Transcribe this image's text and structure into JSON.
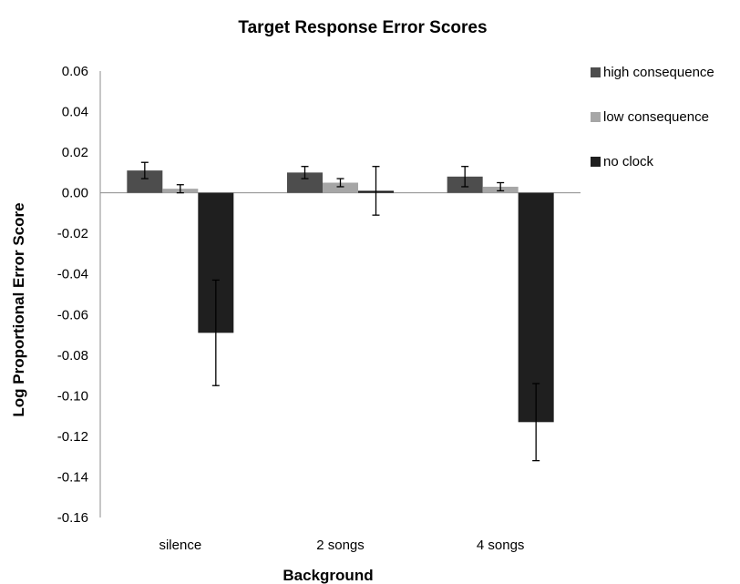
{
  "chart_data": {
    "type": "bar",
    "title": "Target Response Error Scores",
    "xlabel": "Background",
    "ylabel": "Log Proportional Error Score",
    "categories": [
      "silence",
      "2 songs",
      "4 songs"
    ],
    "ylim": [
      -0.16,
      0.06
    ],
    "yticks": [
      "0.06",
      "0.04",
      "0.02",
      "0.00",
      "-0.02",
      "-0.04",
      "-0.06",
      "-0.08",
      "-0.10",
      "-0.12",
      "-0.14",
      "-0.16"
    ],
    "grid": false,
    "legend_position": "right",
    "series": [
      {
        "name": "high consequence",
        "color": "#4d4d4d",
        "values": [
          0.011,
          0.01,
          0.008
        ],
        "errors": [
          0.004,
          0.003,
          0.005
        ]
      },
      {
        "name": "low consequence",
        "color": "#a6a6a6",
        "values": [
          0.002,
          0.005,
          0.003
        ],
        "errors": [
          0.002,
          0.002,
          0.002
        ]
      },
      {
        "name": "no clock",
        "color": "#1f1f1f",
        "values": [
          -0.069,
          0.001,
          -0.113
        ],
        "errors": [
          0.026,
          0.012,
          0.019
        ]
      }
    ]
  }
}
